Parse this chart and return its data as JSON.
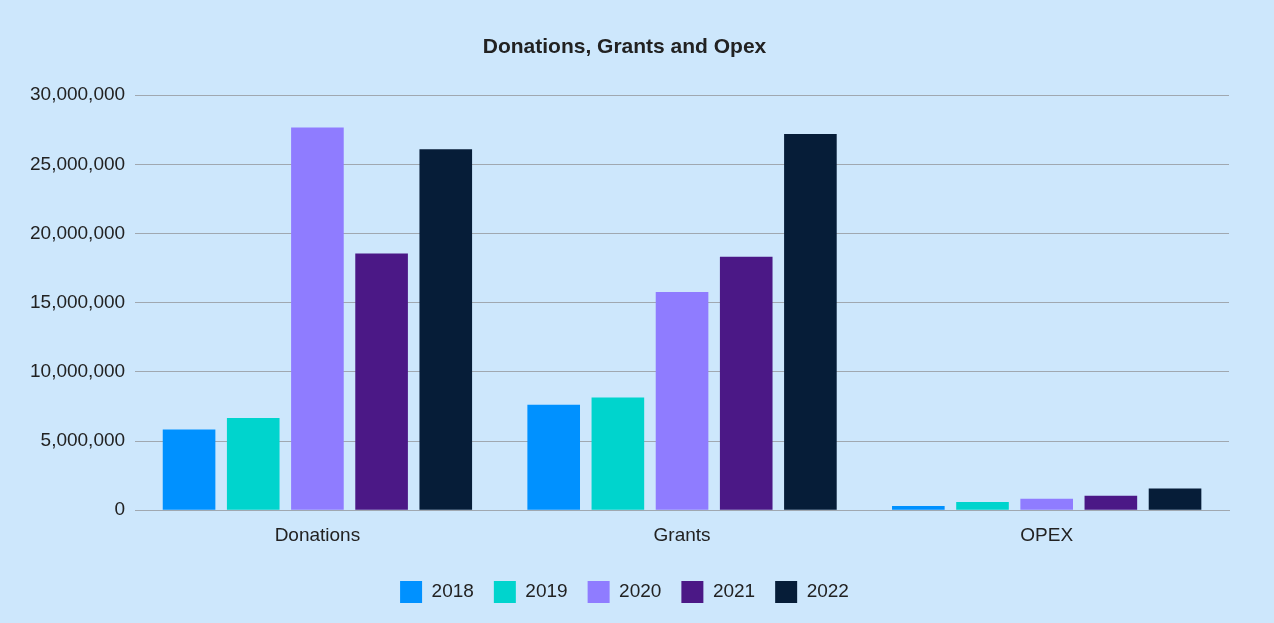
{
  "chart_data": {
    "type": "bar",
    "title": "Donations, Grants and Opex",
    "categories": [
      "Donations",
      "Grants",
      "OPEX"
    ],
    "series": [
      {
        "name": "2018",
        "color": "#0091ff",
        "values": [
          5830000,
          7630000,
          300000
        ]
      },
      {
        "name": "2019",
        "color": "#00d4cd",
        "values": [
          6660000,
          8150000,
          600000
        ]
      },
      {
        "name": "2020",
        "color": "#8f7cff",
        "values": [
          27670000,
          15780000,
          820000
        ]
      },
      {
        "name": "2021",
        "color": "#4b1886",
        "values": [
          18550000,
          18320000,
          1050000
        ]
      },
      {
        "name": "2022",
        "color": "#061d38",
        "values": [
          26100000,
          27200000,
          1570000
        ]
      }
    ],
    "ylim": [
      0,
      30000000
    ],
    "yticks": [
      0,
      {
        "value": 5000000,
        "label": "5,000,000"
      },
      {
        "value": 10000000,
        "label": "10,000,000"
      },
      {
        "value": 15000000,
        "label": "15,000,000"
      },
      {
        "value": 20000000,
        "label": "20,000,000"
      },
      {
        "value": 25000000,
        "label": "25,000,000"
      },
      {
        "value": 30000000,
        "label": "30,000,000"
      }
    ],
    "grid": "y",
    "legend": "bottom"
  }
}
